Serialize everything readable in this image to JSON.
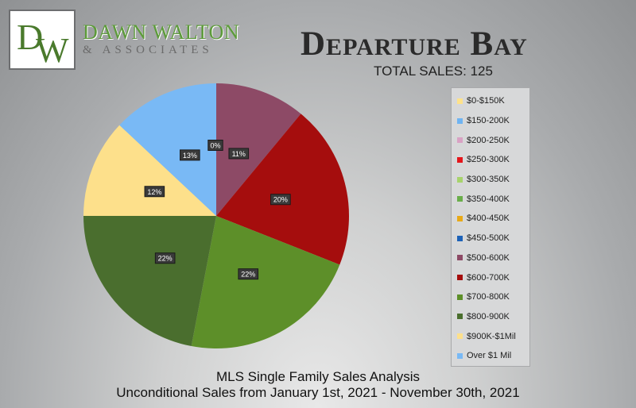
{
  "brand": {
    "logo_letters": "DW",
    "name": "DAWN WALTON",
    "sub": "& ASSOCIATES"
  },
  "header": {
    "title": "Departure Bay",
    "total_sales": "TOTAL SALES: 125"
  },
  "footer": {
    "line1": "MLS Single Family Sales Analysis",
    "line2": "Unconditional Sales from January 1st, 2021 - November 30th, 2021"
  },
  "chart_data": {
    "type": "pie",
    "title": "Departure Bay",
    "subtitle": "TOTAL SALES: 125",
    "legend_position": "right",
    "slices": [
      {
        "label": "$0-$150K",
        "value": 0,
        "display": "",
        "color": "#ffe28a"
      },
      {
        "label": "$150-200K",
        "value": 0,
        "display": "",
        "color": "#6fb4f2"
      },
      {
        "label": "$200-250K",
        "value": 0,
        "display": "",
        "color": "#d9a2c4"
      },
      {
        "label": "$250-300K",
        "value": 0,
        "display": "",
        "color": "#e5161b"
      },
      {
        "label": "$300-350K",
        "value": 0,
        "display": "",
        "color": "#a7d36c"
      },
      {
        "label": "$350-400K",
        "value": 0,
        "display": "",
        "color": "#6aae4a"
      },
      {
        "label": "$400-450K",
        "value": 0,
        "display": "",
        "color": "#e8a917"
      },
      {
        "label": "$450-500K",
        "value": 0,
        "display": "0%",
        "color": "#1d62b8"
      },
      {
        "label": "$500-600K",
        "value": 11,
        "display": "11%",
        "color": "#8d4a66"
      },
      {
        "label": "$600-700K",
        "value": 20,
        "display": "20%",
        "color": "#a50d0d"
      },
      {
        "label": "$700-800K",
        "value": 22,
        "display": "22%",
        "color": "#5d8f29"
      },
      {
        "label": "$800-900K",
        "value": 22,
        "display": "22%",
        "color": "#4a6e2e"
      },
      {
        "label": "$900K-$1Mil",
        "value": 12,
        "display": "12%",
        "color": "#fde08b"
      },
      {
        "label": "Over $1 Mil",
        "value": 13,
        "display": "13%",
        "color": "#79b9f5"
      }
    ]
  }
}
